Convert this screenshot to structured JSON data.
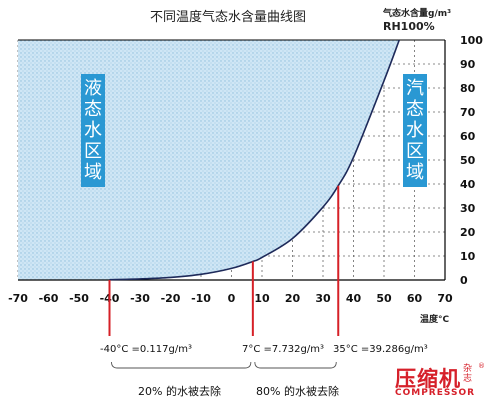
{
  "chart_data": {
    "type": "area",
    "title": "不同温度气态水含量曲线图",
    "ylabel": "气态水含量g/m³",
    "series_label": "RH100%",
    "xlabel": "温度°C",
    "xlim": [
      -70,
      70
    ],
    "ylim": [
      0,
      100
    ],
    "x_ticks": [
      "-70",
      "-60",
      "-50",
      "-40",
      "-30",
      "-20",
      "-10",
      "0",
      "10",
      "20",
      "30",
      "40",
      "50",
      "60",
      "70"
    ],
    "y_ticks": [
      "0",
      "10",
      "20",
      "30",
      "40",
      "50",
      "60",
      "70",
      "80",
      "90",
      "100"
    ],
    "grid": true,
    "series": [
      {
        "x": [
          -40,
          -30,
          -20,
          -10,
          0,
          7,
          10,
          20,
          30,
          35,
          40,
          50,
          55
        ],
        "y": [
          0.117,
          0.45,
          1.07,
          2.36,
          4.85,
          7.732,
          9.4,
          17.3,
          30.4,
          39.286,
          51.1,
          83.0,
          100
        ]
      }
    ],
    "regions": [
      {
        "label": "液态水区域"
      },
      {
        "label": "汽态水区域"
      }
    ],
    "markers": [
      {
        "x": -40,
        "label": "-40°C =0.117g/m³"
      },
      {
        "x": 7,
        "label": "7°C =7.732g/m³"
      },
      {
        "x": 35,
        "label": "35°C =39.286g/m³"
      }
    ],
    "ranges": [
      {
        "from": -40,
        "to": 7,
        "label": "20% 的水被去除"
      },
      {
        "from": 7,
        "to": 35,
        "label": "80% 的水被去除"
      }
    ],
    "colors": {
      "liquid_fill": "#cfe6f5",
      "liquid_dot": "#8fbfdc",
      "curve": "#1e2a5a",
      "marker": "#d62027",
      "region_box": "#2a98d3"
    }
  },
  "watermark": {
    "cn": "压缩机",
    "side": "杂志",
    "reg": "®",
    "en": "COMPRESSOR"
  }
}
